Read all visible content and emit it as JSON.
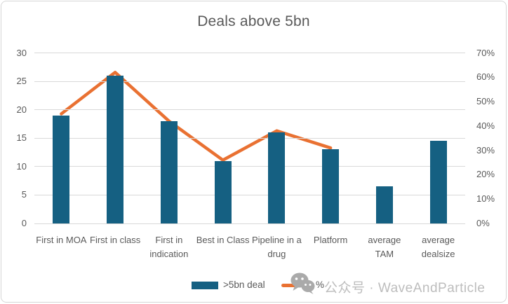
{
  "watermark": {
    "icon": "wechat-icon",
    "text": "公众号 · WaveAndParticle"
  },
  "chart_data": {
    "type": "combo",
    "title": "Deals above 5bn",
    "categories": [
      "First in MOA",
      "First in class",
      "First in indication",
      "Best in Class",
      "Pipeline in a drug",
      "Platform",
      "average TAM",
      "average dealsize"
    ],
    "series": [
      {
        "name": ">5bn deal",
        "type": "bar",
        "axis": "left",
        "color": "#156082",
        "values": [
          19,
          26,
          18,
          11,
          16,
          13,
          6.5,
          14.5
        ]
      },
      {
        "name": "%",
        "type": "line",
        "axis": "right",
        "color": "#E97132",
        "values": [
          45,
          62,
          42,
          26,
          38,
          31,
          null,
          null
        ]
      }
    ],
    "left_axis": {
      "min": 0,
      "max": 30,
      "ticks": [
        0,
        5,
        10,
        15,
        20,
        25,
        30
      ]
    },
    "right_axis": {
      "min": 0,
      "max": 70,
      "ticks": [
        "0%",
        "10%",
        "20%",
        "30%",
        "40%",
        "50%",
        "60%",
        "70%"
      ]
    },
    "grid": true,
    "legend_position": "bottom",
    "colors": {
      "text": "#595959",
      "gridline": "#D9D9D9",
      "watermark": "#BDBDBD"
    }
  }
}
